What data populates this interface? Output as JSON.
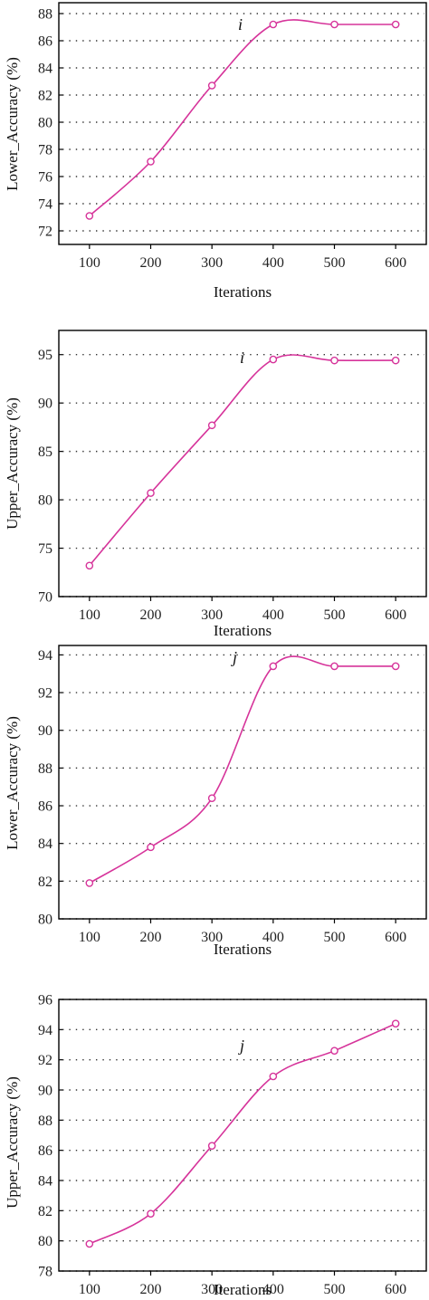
{
  "chart_data": [
    {
      "type": "line",
      "xlabel": "Iterations",
      "ylabel": "Lower_Accuracy (%)",
      "annotation": "i",
      "x": [
        100,
        200,
        300,
        400,
        500,
        600
      ],
      "xlim": [
        50,
        650
      ],
      "xticks": [
        "100",
        "200",
        "300",
        "400",
        "500",
        "600"
      ],
      "ylim": [
        71,
        88.8
      ],
      "yticks": [
        "72",
        "74",
        "76",
        "78",
        "80",
        "82",
        "84",
        "86",
        "88"
      ],
      "grid": true,
      "series": [
        {
          "color": "#d6339a",
          "values": [
            73.1,
            77.1,
            82.7,
            87.2,
            87.2,
            87.2
          ]
        }
      ]
    },
    {
      "type": "line",
      "xlabel": "Iterations",
      "ylabel": "Upper_Accuracy (%)",
      "annotation": "i",
      "x": [
        100,
        200,
        300,
        400,
        500,
        600
      ],
      "xlim": [
        50,
        650
      ],
      "xticks": [
        "100",
        "200",
        "300",
        "400",
        "500",
        "600"
      ],
      "ylim": [
        70,
        97.5
      ],
      "yticks": [
        "70",
        "75",
        "80",
        "85",
        "90",
        "95"
      ],
      "grid": true,
      "series": [
        {
          "color": "#d6339a",
          "values": [
            73.2,
            80.7,
            87.7,
            94.5,
            94.4,
            94.4
          ]
        }
      ]
    },
    {
      "type": "line",
      "xlabel": "Iterations",
      "ylabel": "Lower_Accuracy (%)",
      "annotation": "j",
      "x": [
        100,
        200,
        300,
        400,
        500,
        600
      ],
      "xlim": [
        50,
        650
      ],
      "xticks": [
        "100",
        "200",
        "300",
        "400",
        "500",
        "600"
      ],
      "ylim": [
        80,
        94.5
      ],
      "yticks": [
        "80",
        "82",
        "84",
        "86",
        "88",
        "90",
        "92",
        "94"
      ],
      "grid": true,
      "series": [
        {
          "color": "#d6339a",
          "values": [
            81.9,
            83.8,
            86.4,
            93.4,
            93.4,
            93.4
          ]
        }
      ]
    },
    {
      "type": "line",
      "xlabel": "Iterations",
      "ylabel": "Upper_Accuracy (%)",
      "annotation": "j",
      "x": [
        100,
        200,
        300,
        400,
        500,
        600
      ],
      "xlim": [
        50,
        650
      ],
      "xticks": [
        "100",
        "200",
        "300",
        "400",
        "500",
        "600"
      ],
      "ylim": [
        78,
        96
      ],
      "yticks": [
        "78",
        "80",
        "82",
        "84",
        "86",
        "88",
        "90",
        "92",
        "94",
        "96"
      ],
      "grid": true,
      "series": [
        {
          "color": "#d6339a",
          "values": [
            79.8,
            81.8,
            86.3,
            90.9,
            92.6,
            94.4
          ]
        }
      ]
    }
  ]
}
